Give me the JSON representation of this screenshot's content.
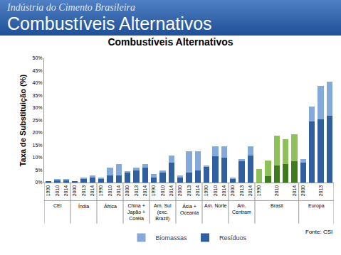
{
  "banner": {
    "subtitle": "Indústria do Cimento Brasileira",
    "title": "Combustíveis Alternativos"
  },
  "chart_data": {
    "type": "bar",
    "title": "Combustíveis Alternativos",
    "y_label": "Taxa de Substituição (%)",
    "source": "Fonte: CSI",
    "stacked": true,
    "grid": false,
    "legend": "bottom",
    "ylim": [
      0,
      50
    ],
    "yticks": [
      {
        "value": 0,
        "label": "0%"
      },
      {
        "value": 5,
        "label": "5%"
      },
      {
        "value": 10,
        "label": "10%"
      },
      {
        "value": 15,
        "label": "15%"
      },
      {
        "value": 20,
        "label": "20%"
      },
      {
        "value": 25,
        "label": "25%"
      },
      {
        "value": 30,
        "label": "30%"
      },
      {
        "value": 35,
        "label": "35%"
      },
      {
        "value": 40,
        "label": "40%"
      },
      {
        "value": 45,
        "label": "45%"
      },
      {
        "value": 50,
        "label": "50%"
      }
    ],
    "groups": [
      {
        "label": "CEI",
        "categories": [
          "1990",
          "2010",
          "2014"
        ]
      },
      {
        "label": "Índia",
        "categories": [
          "2000",
          "2013",
          "2014"
        ]
      },
      {
        "label": "África",
        "categories": [
          "1990",
          "2010",
          "2014"
        ]
      },
      {
        "label": "China +\nJapão +\nCoréia",
        "categories": [
          "2000",
          "2013",
          "2014"
        ]
      },
      {
        "label": "Am. Sul\n(exc.\nBrazil)",
        "categories": [
          "1990",
          "2010",
          "2014"
        ]
      },
      {
        "label": "Ásia +\nOceania",
        "categories": [
          "2000",
          "2013",
          "2014"
        ]
      },
      {
        "label": "Am. Norte",
        "categories": [
          "1990",
          "2010",
          "2014"
        ]
      },
      {
        "label": "Am.\nCentram",
        "categories": [
          "2000",
          "2013",
          "2014"
        ]
      },
      {
        "label": "Brasil",
        "categories": [
          "1990",
          null,
          "2010",
          null,
          "2014"
        ]
      },
      {
        "label": "Europa",
        "categories": [
          "2000",
          null,
          "2013",
          null
        ]
      }
    ],
    "series": [
      {
        "name": "Resíduos",
        "colors": [
          "#2f5f9e",
          "#2f5f9e",
          "#2f5f9e",
          "#2f5f9e",
          "#2f5f9e",
          "#2f5f9e",
          "#2f5f9e",
          "#2f5f9e",
          "#2f5f9e",
          "#2f5f9e",
          "#2f5f9e",
          "#2f5f9e",
          "#2f5f9e",
          "#2f5f9e",
          "#2f5f9e",
          "#2f5f9e",
          "#2f5f9e",
          "#2f5f9e",
          "#2f5f9e",
          "#2f5f9e",
          "#2f5f9e",
          "#2f5f9e",
          "#2f5f9e",
          "#2f5f9e",
          "#3f7a1f",
          "#3f7a1f",
          "#3f7a1f",
          "#3f7a1f",
          "#3f7a1f",
          "#2f5f9e",
          "#2f5f9e",
          "#2f5f9e",
          "#2f5f9e"
        ],
        "values": [
          0.5,
          1,
          1,
          0.3,
          1.5,
          2,
          1.5,
          3,
          3,
          4,
          5,
          6,
          2,
          4,
          8,
          2,
          4,
          5,
          6.5,
          10.5,
          10,
          1.5,
          8.5,
          11,
          0,
          2.5,
          7,
          7.5,
          8.5,
          8,
          24.5,
          25.5,
          27
        ]
      },
      {
        "name": "Biomassas",
        "colors": [
          "#85a9d8",
          "#85a9d8",
          "#85a9d8",
          "#85a9d8",
          "#85a9d8",
          "#85a9d8",
          "#85a9d8",
          "#85a9d8",
          "#85a9d8",
          "#85a9d8",
          "#85a9d8",
          "#85a9d8",
          "#85a9d8",
          "#85a9d8",
          "#85a9d8",
          "#85a9d8",
          "#85a9d8",
          "#85a9d8",
          "#85a9d8",
          "#85a9d8",
          "#85a9d8",
          "#85a9d8",
          "#85a9d8",
          "#85a9d8",
          "#8fc05a",
          "#8fc05a",
          "#8fc05a",
          "#8fc05a",
          "#8fc05a",
          "#85a9d8",
          "#85a9d8",
          "#85a9d8",
          "#85a9d8"
        ],
        "values": [
          0,
          0.3,
          0.2,
          0,
          0.5,
          0.8,
          0.5,
          3,
          4.5,
          0.5,
          1,
          1.5,
          1.5,
          1,
          3,
          1,
          8.5,
          7.5,
          0.5,
          4,
          4.5,
          0.5,
          1,
          3.5,
          5.5,
          6.5,
          12,
          10,
          11,
          1.5,
          6,
          13.5,
          13.5
        ]
      }
    ]
  }
}
